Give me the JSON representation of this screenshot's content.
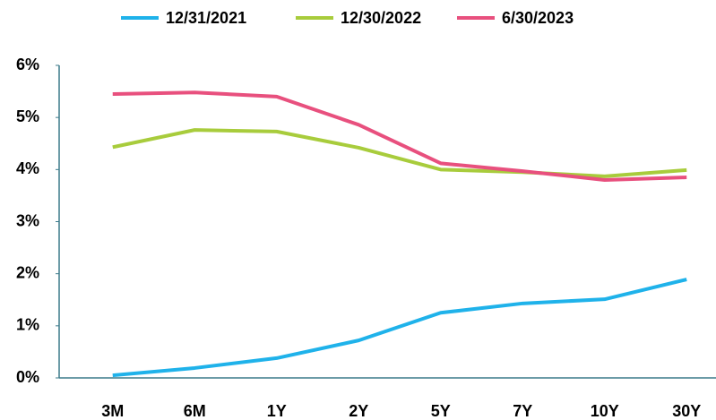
{
  "chart_data": {
    "type": "line",
    "categories": [
      "3M",
      "6M",
      "1Y",
      "2Y",
      "5Y",
      "7Y",
      "10Y",
      "30Y"
    ],
    "series": [
      {
        "name": "12/31/2021",
        "color": "#1fb2ea",
        "values": [
          0.05,
          0.19,
          0.38,
          0.72,
          1.25,
          1.43,
          1.51,
          1.89
        ]
      },
      {
        "name": "12/30/2022",
        "color": "#a8cc3c",
        "values": [
          4.43,
          4.76,
          4.73,
          4.42,
          4.0,
          3.95,
          3.87,
          3.99
        ]
      },
      {
        "name": "6/30/2023",
        "color": "#e8507e",
        "values": [
          5.45,
          5.48,
          5.4,
          4.86,
          4.12,
          3.97,
          3.8,
          3.85
        ]
      }
    ],
    "ylim": [
      0,
      6
    ],
    "yticks": [
      {
        "value": 0,
        "label": "0%"
      },
      {
        "value": 1,
        "label": "1%"
      },
      {
        "value": 2,
        "label": "2%"
      },
      {
        "value": 3,
        "label": "3%"
      },
      {
        "value": 4,
        "label": "4%"
      },
      {
        "value": 5,
        "label": "5%"
      },
      {
        "value": 6,
        "label": "6%"
      }
    ],
    "legend": "top"
  }
}
